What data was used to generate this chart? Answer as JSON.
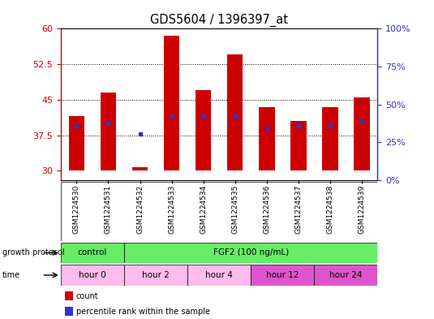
{
  "title": "GDS5604 / 1396397_at",
  "samples": [
    "GSM1224530",
    "GSM1224531",
    "GSM1224532",
    "GSM1224533",
    "GSM1224534",
    "GSM1224535",
    "GSM1224536",
    "GSM1224537",
    "GSM1224538",
    "GSM1224539"
  ],
  "bar_values": [
    41.5,
    46.5,
    30.8,
    58.5,
    47.0,
    54.5,
    43.5,
    40.5,
    43.5,
    45.5
  ],
  "bar_base": 30,
  "blue_dot_values": [
    39.5,
    40.0,
    37.8,
    41.5,
    41.5,
    41.5,
    39.0,
    39.5,
    39.5,
    40.5
  ],
  "bar_color": "#cc0000",
  "blue_color": "#3333cc",
  "ylim_left": [
    28,
    60
  ],
  "yticks_left": [
    30,
    37.5,
    45,
    52.5,
    60
  ],
  "ytick_labels_left": [
    "30",
    "37.5",
    "45",
    "52.5",
    "60"
  ],
  "ytick_labels_right": [
    "0%",
    "25%",
    "50%",
    "75%",
    "100%"
  ],
  "bg_color": "#ffffff",
  "bar_width": 0.5,
  "gp_spans": [
    [
      0,
      2,
      "control",
      "#66ee66"
    ],
    [
      2,
      10,
      "FGF2 (100 ng/mL)",
      "#66ee66"
    ]
  ],
  "time_spans": [
    [
      0,
      2,
      "hour 0",
      "#ffbbee"
    ],
    [
      2,
      4,
      "hour 2",
      "#ffbbee"
    ],
    [
      4,
      6,
      "hour 4",
      "#ffbbee"
    ],
    [
      6,
      8,
      "hour 12",
      "#dd55cc"
    ],
    [
      8,
      10,
      "hour 24",
      "#dd55cc"
    ]
  ],
  "legend_items": [
    {
      "label": "count",
      "color": "#cc0000"
    },
    {
      "label": "percentile rank within the sample",
      "color": "#3333cc"
    }
  ]
}
